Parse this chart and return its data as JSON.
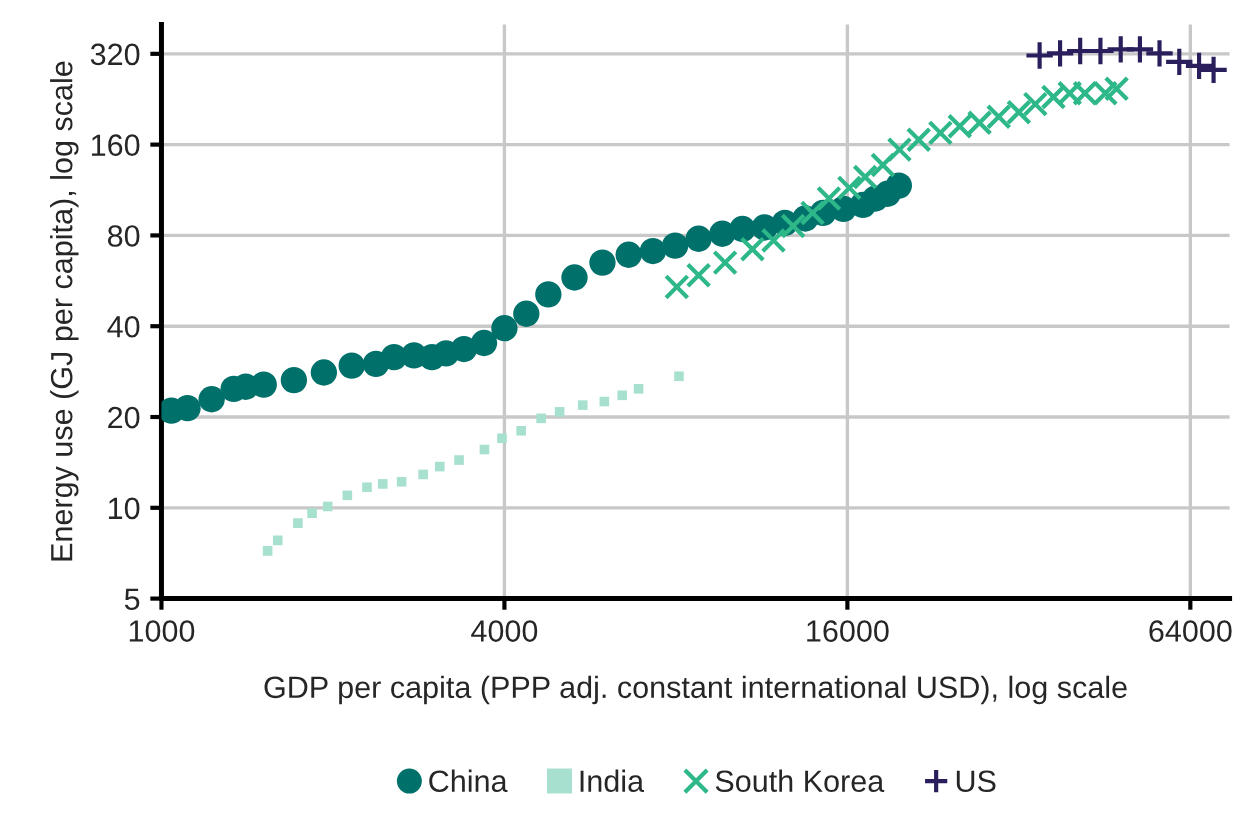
{
  "chart_data": {
    "type": "scatter",
    "xlabel": "GDP per capita (PPP adj. constant international USD), log scale",
    "ylabel": "Energy use (GJ per capita), log scale",
    "log": "xy",
    "xlim": [
      1000,
      75000
    ],
    "ylim": [
      5,
      400
    ],
    "xticks": [
      1000,
      4000,
      16000,
      64000
    ],
    "yticks": [
      5,
      10,
      20,
      40,
      80,
      160,
      320
    ],
    "grid": true,
    "legend": "bottom",
    "series": [
      {
        "name": "China",
        "color": "#00706a",
        "marker": "circle",
        "x": [
          1041,
          1111,
          1225,
          1339,
          1406,
          1512,
          1708,
          1928,
          2158,
          2380,
          2560,
          2775,
          2985,
          3159,
          3396,
          3683,
          4000,
          4370,
          4777,
          5310,
          5945,
          6610,
          7290,
          7975,
          8770,
          9650,
          10470,
          11450,
          12430,
          13500,
          14500,
          15750,
          17040,
          17920,
          18830,
          19700
        ],
        "values": [
          21,
          21.4,
          22.9,
          24.8,
          25.2,
          25.6,
          26.5,
          28.1,
          29.6,
          30,
          31.6,
          32,
          31.6,
          32.5,
          33.6,
          35.2,
          39.4,
          44,
          51,
          58,
          65,
          69,
          71,
          74,
          78,
          81,
          84,
          85,
          88,
          91,
          95,
          98,
          101,
          106,
          110,
          117
        ]
      },
      {
        "name": "India",
        "color": "#a8e0d0",
        "marker": "square",
        "x": [
          1536,
          1600,
          1736,
          1838,
          1958,
          2120,
          2295,
          2446,
          2640,
          2880,
          3080,
          3330,
          3690,
          3960,
          4280,
          4640,
          5000,
          5490,
          5990,
          6440,
          6880,
          8100
        ],
        "values": [
          7.2,
          7.8,
          8.9,
          9.6,
          10.1,
          11,
          11.7,
          12,
          12.2,
          12.9,
          13.7,
          14.4,
          15.6,
          17,
          18,
          19.8,
          20.8,
          21.9,
          22.5,
          23.6,
          24.8,
          27.3
        ]
      },
      {
        "name": "South Korea",
        "color": "#2eb88a",
        "marker": "cross",
        "x": [
          8030,
          8770,
          9760,
          10900,
          11870,
          12850,
          13900,
          14850,
          16130,
          17190,
          18470,
          19750,
          21350,
          23300,
          25200,
          27300,
          29500,
          32000,
          34200,
          36800,
          39300,
          41800,
          45400,
          47500
        ],
        "values": [
          54,
          59,
          65,
          72,
          77,
          86,
          95,
          106,
          115,
          125,
          137,
          154,
          166,
          175,
          184,
          189,
          198,
          205,
          218,
          230,
          237,
          237,
          237,
          245
        ]
      },
      {
        "name": "US",
        "color": "#2a1e5c",
        "marker": "plus",
        "x": [
          34800,
          37800,
          41000,
          44500,
          48300,
          52200,
          56500,
          61200,
          66300,
          70300
        ],
        "values": [
          316,
          321,
          327,
          327,
          331,
          331,
          321,
          301,
          292,
          283
        ]
      }
    ]
  }
}
